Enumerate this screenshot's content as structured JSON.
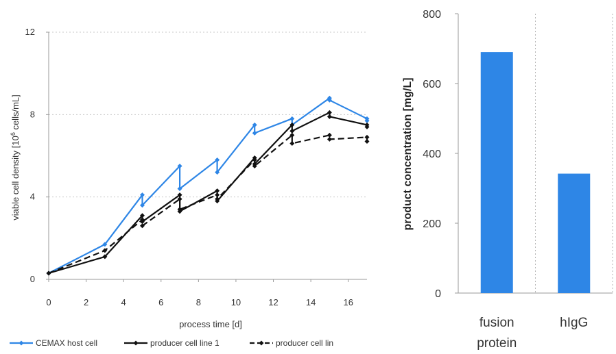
{
  "chart_data": [
    {
      "type": "line",
      "title": "",
      "xlabel": "process time [d]",
      "ylabel_main": "viable cell density [10",
      "ylabel_sup": "6",
      "ylabel_tail": " cells/mL]",
      "xlim": [
        0,
        17
      ],
      "ylim": [
        0,
        12
      ],
      "xticks": [
        0,
        2,
        4,
        6,
        8,
        10,
        12,
        14,
        16
      ],
      "yticks": [
        0,
        4,
        8,
        12
      ],
      "grid": "horizontal",
      "legend_position": "bottom",
      "series": [
        {
          "name": "CEMAX host cell",
          "color": "#2e86e6",
          "style": "solid",
          "x": [
            0,
            3,
            5,
            5,
            7,
            7,
            9,
            9,
            11,
            11,
            13,
            13,
            15,
            15,
            17,
            17
          ],
          "y": [
            0.3,
            1.7,
            4.1,
            3.6,
            5.5,
            4.4,
            5.8,
            5.2,
            7.5,
            7.1,
            7.8,
            7.5,
            8.8,
            8.7,
            7.8,
            7.7
          ]
        },
        {
          "name": "producer cell line 1",
          "color": "#111111",
          "style": "solid",
          "x": [
            0,
            3,
            5,
            5,
            7,
            7,
            9,
            9,
            11,
            11,
            13,
            13,
            15,
            15,
            17,
            17
          ],
          "y": [
            0.3,
            1.1,
            3.1,
            2.8,
            4.1,
            3.3,
            4.3,
            3.8,
            5.9,
            5.6,
            7.5,
            7.2,
            8.1,
            7.9,
            7.5,
            7.4
          ]
        },
        {
          "name": "producer cell lin",
          "color": "#111111",
          "style": "dashed",
          "x": [
            0,
            3,
            5,
            5,
            7,
            7,
            9,
            9,
            11,
            11,
            13,
            13,
            15,
            15,
            17,
            17
          ],
          "y": [
            0.3,
            1.4,
            2.9,
            2.6,
            3.9,
            3.4,
            4.1,
            3.9,
            5.8,
            5.5,
            7.0,
            6.6,
            7.0,
            6.8,
            6.9,
            6.7
          ]
        }
      ]
    },
    {
      "type": "bar",
      "title": "",
      "ylabel": "product concentration [mg/L]",
      "ylim": [
        0,
        800
      ],
      "yticks": [
        0,
        200,
        400,
        600,
        800
      ],
      "grid": "vertical",
      "categories": [
        {
          "line1": "fusion",
          "line2": "protein"
        },
        {
          "line1": "hIgG",
          "line2": ""
        }
      ],
      "values": [
        690,
        342
      ],
      "color": "#2e86e6"
    }
  ]
}
